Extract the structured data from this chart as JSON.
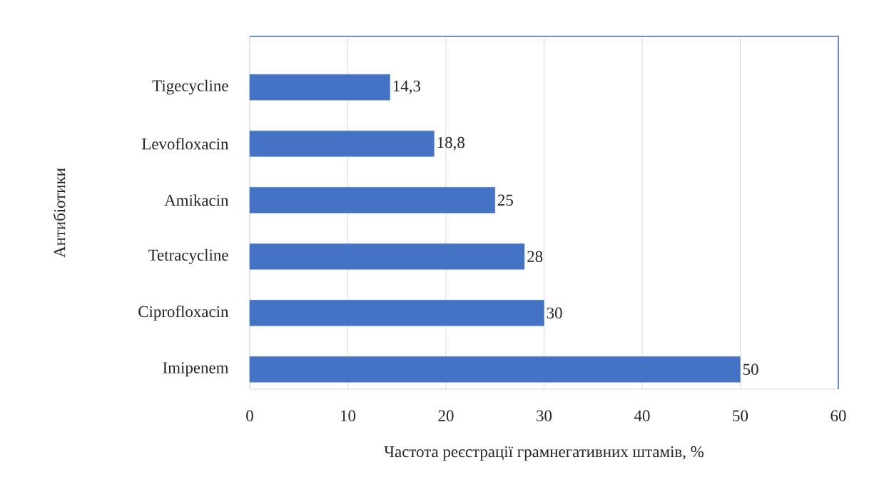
{
  "chart_data": {
    "type": "bar",
    "orientation": "horizontal",
    "xlabel": "Частота реєстрації грамнегативних штамів, %",
    "ylabel": "Антибіотики",
    "categories": [
      "Tigecycline",
      "Levofloxacin",
      "Amikacin",
      "Tetracycline",
      "Ciprofloxacin",
      "Imipenem"
    ],
    "values": [
      14.3,
      18.8,
      25,
      28,
      30,
      50
    ],
    "value_labels": [
      "14,3",
      "18,8",
      "25",
      "28",
      "30",
      "50"
    ],
    "color": "#4472c4",
    "xlim": [
      0,
      60
    ],
    "xticks": [
      0,
      10,
      20,
      30,
      40,
      50,
      60
    ],
    "grid": "x"
  }
}
